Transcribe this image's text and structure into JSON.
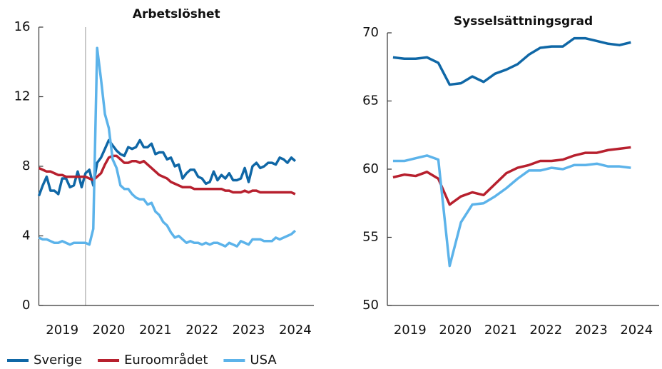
{
  "chart_data": [
    {
      "type": "line",
      "title": "Arbetslöshet",
      "x": [
        2019,
        2019.083,
        2019.167,
        2019.25,
        2019.333,
        2019.417,
        2019.5,
        2019.583,
        2019.667,
        2019.75,
        2019.833,
        2019.917,
        2020,
        2020.083,
        2020.167,
        2020.25,
        2020.333,
        2020.417,
        2020.5,
        2020.583,
        2020.667,
        2020.75,
        2020.833,
        2020.917,
        2021,
        2021.083,
        2021.167,
        2021.25,
        2021.333,
        2021.417,
        2021.5,
        2021.583,
        2021.667,
        2021.75,
        2021.833,
        2021.917,
        2022,
        2022.083,
        2022.167,
        2022.25,
        2022.333,
        2022.417,
        2022.5,
        2022.583,
        2022.667,
        2022.75,
        2022.833,
        2022.917,
        2023,
        2023.083,
        2023.167,
        2023.25,
        2023.333,
        2023.417,
        2023.5,
        2023.583,
        2023.667,
        2023.75,
        2023.833,
        2023.917,
        2024,
        2024.083,
        2024.167,
        2024.25,
        2024.333,
        2024.417,
        2024.5
      ],
      "series": [
        {
          "name": "Sverige",
          "color": "#0f67a6",
          "values": [
            6.3,
            6.9,
            7.4,
            6.6,
            6.6,
            6.4,
            7.3,
            7.3,
            6.8,
            6.9,
            7.7,
            6.8,
            7.6,
            7.8,
            6.9,
            8.2,
            8.5,
            9.0,
            9.5,
            9.2,
            8.9,
            8.7,
            8.6,
            9.1,
            9.0,
            9.1,
            9.5,
            9.1,
            9.1,
            9.3,
            8.7,
            8.8,
            8.8,
            8.4,
            8.5,
            8.0,
            8.1,
            7.3,
            7.6,
            7.8,
            7.8,
            7.4,
            7.3,
            7.0,
            7.1,
            7.7,
            7.2,
            7.5,
            7.3,
            7.6,
            7.2,
            7.2,
            7.3,
            7.9,
            7.1,
            8.0,
            8.2,
            7.9,
            8.0,
            8.2,
            8.2,
            8.1,
            8.5,
            8.4,
            8.2,
            8.5,
            8.3
          ]
        },
        {
          "name": "Euroområdet",
          "color": "#b7202e",
          "values": [
            7.9,
            7.8,
            7.7,
            7.7,
            7.6,
            7.5,
            7.5,
            7.4,
            7.4,
            7.4,
            7.4,
            7.4,
            7.4,
            7.3,
            7.2,
            7.4,
            7.6,
            8.1,
            8.5,
            8.6,
            8.6,
            8.4,
            8.2,
            8.2,
            8.3,
            8.3,
            8.2,
            8.3,
            8.1,
            7.9,
            7.7,
            7.5,
            7.4,
            7.3,
            7.1,
            7.0,
            6.9,
            6.8,
            6.8,
            6.8,
            6.7,
            6.7,
            6.7,
            6.7,
            6.7,
            6.7,
            6.7,
            6.7,
            6.6,
            6.6,
            6.5,
            6.5,
            6.5,
            6.6,
            6.5,
            6.6,
            6.6,
            6.5,
            6.5,
            6.5,
            6.5,
            6.5,
            6.5,
            6.5,
            6.5,
            6.5,
            6.4
          ]
        },
        {
          "name": "USA",
          "color": "#5cb3ea",
          "values": [
            3.9,
            3.8,
            3.8,
            3.7,
            3.6,
            3.6,
            3.7,
            3.6,
            3.5,
            3.6,
            3.6,
            3.6,
            3.6,
            3.5,
            4.4,
            14.8,
            13.0,
            11.0,
            10.2,
            8.4,
            7.9,
            6.9,
            6.7,
            6.7,
            6.4,
            6.2,
            6.1,
            6.1,
            5.8,
            5.9,
            5.4,
            5.2,
            4.8,
            4.6,
            4.2,
            3.9,
            4.0,
            3.8,
            3.6,
            3.7,
            3.6,
            3.6,
            3.5,
            3.6,
            3.5,
            3.6,
            3.6,
            3.5,
            3.4,
            3.6,
            3.5,
            3.4,
            3.7,
            3.6,
            3.5,
            3.8,
            3.8,
            3.8,
            3.7,
            3.7,
            3.7,
            3.9,
            3.8,
            3.9,
            4.0,
            4.1,
            4.3
          ]
        }
      ],
      "xlim": [
        2019,
        2024.9
      ],
      "xticks": [
        {
          "value": 2019.5,
          "label": "2019"
        },
        {
          "value": 2020.5,
          "label": "2020"
        },
        {
          "value": 2021.5,
          "label": "2021"
        },
        {
          "value": 2022.5,
          "label": "2022"
        },
        {
          "value": 2023.5,
          "label": "2023"
        },
        {
          "value": 2024.5,
          "label": "2024"
        }
      ],
      "vlines": [
        2020
      ],
      "ylim": [
        0,
        16
      ],
      "yticks": [
        0,
        4,
        8,
        12,
        16
      ]
    },
    {
      "type": "line",
      "title": "Sysselsättningsgrad",
      "x": [
        2019.125,
        2019.375,
        2019.625,
        2019.875,
        2020.125,
        2020.375,
        2020.625,
        2020.875,
        2021.125,
        2021.375,
        2021.625,
        2021.875,
        2022.125,
        2022.375,
        2022.625,
        2022.875,
        2023.125,
        2023.375,
        2023.625,
        2023.875,
        2024.125,
        2024.375
      ],
      "series": [
        {
          "color": "#0f67a6",
          "values": [
            68.2,
            68.1,
            68.1,
            68.2,
            67.8,
            66.2,
            66.3,
            66.8,
            66.4,
            67.0,
            67.3,
            67.7,
            68.4,
            68.9,
            69.0,
            69.0,
            69.6,
            69.6,
            69.4,
            69.2,
            69.1,
            69.3
          ]
        },
        {
          "color": "#b7202e",
          "values": [
            59.4,
            59.6,
            59.5,
            59.8,
            59.3,
            57.4,
            58.0,
            58.3,
            58.1,
            58.9,
            59.7,
            60.1,
            60.3,
            60.6,
            60.6,
            60.7,
            61.0,
            61.2,
            61.2,
            61.4,
            61.5,
            61.6
          ]
        },
        {
          "color": "#5cb3ea",
          "values": [
            60.6,
            60.6,
            60.8,
            61.0,
            60.7,
            52.9,
            56.1,
            57.4,
            57.5,
            58.0,
            58.6,
            59.3,
            59.9,
            59.9,
            60.1,
            60.0,
            60.3,
            60.3,
            60.4,
            60.2,
            60.2,
            60.1
          ]
        }
      ],
      "xlim": [
        2019,
        2025
      ],
      "xticks": [
        {
          "value": 2019.5,
          "label": "2019"
        },
        {
          "value": 2020.5,
          "label": "2020"
        },
        {
          "value": 2021.5,
          "label": "2021"
        },
        {
          "value": 2022.5,
          "label": "2022"
        },
        {
          "value": 2023.5,
          "label": "2023"
        },
        {
          "value": 2024.5,
          "label": "2024"
        }
      ],
      "ylim": [
        50,
        70
      ],
      "yticks": [
        50,
        55,
        60,
        65,
        70
      ]
    }
  ]
}
